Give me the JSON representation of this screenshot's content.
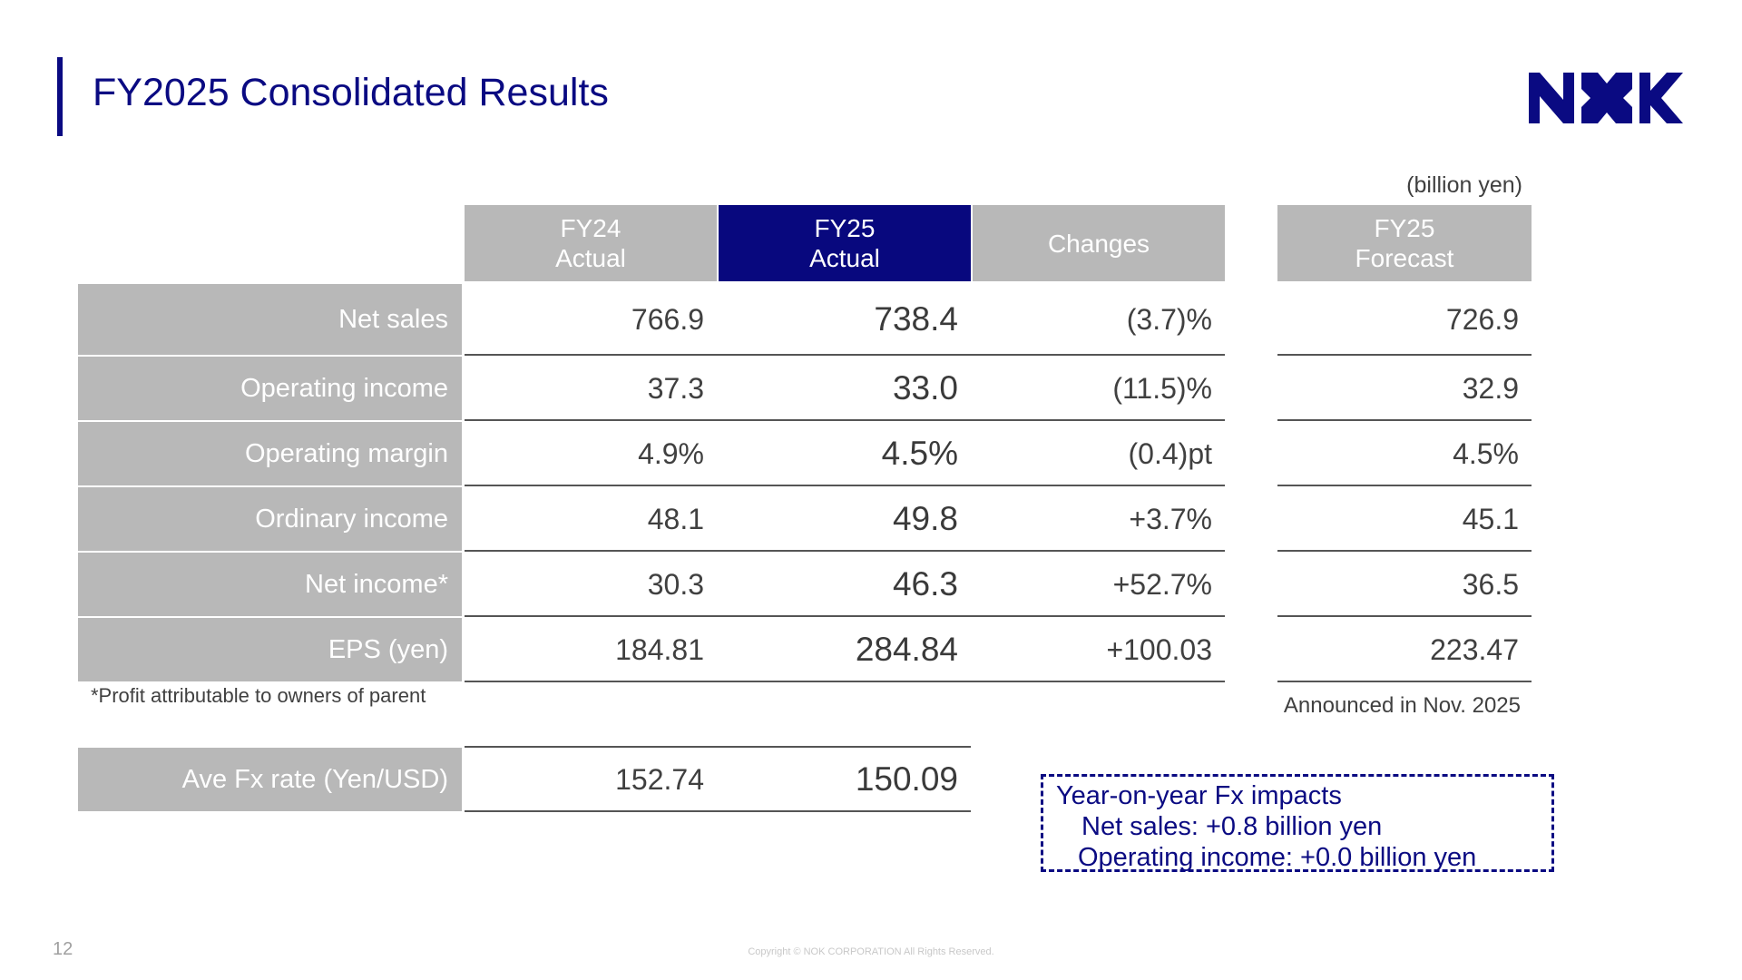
{
  "title": "FY2025 Consolidated Results",
  "unit_note": "(billion yen)",
  "brand_color": "#0a0a82",
  "columns": {
    "fy24": [
      "FY24",
      "Actual"
    ],
    "fy25": [
      "FY25",
      "Actual"
    ],
    "changes": "Changes",
    "forecast": [
      "FY25",
      "Forecast"
    ]
  },
  "rows": [
    {
      "label": "Net sales",
      "fy24": "766.9",
      "fy25": "738.4",
      "change": "(3.7)%",
      "forecast": "726.9"
    },
    {
      "label": "Operating income",
      "fy24": "37.3",
      "fy25": "33.0",
      "change": "(11.5)%",
      "forecast": "32.9"
    },
    {
      "label": "Operating margin",
      "fy24": "4.9%",
      "fy25": "4.5%",
      "change": "(0.4)pt",
      "forecast": "4.5%"
    },
    {
      "label": "Ordinary income",
      "fy24": "48.1",
      "fy25": "49.8",
      "change": "+3.7%",
      "forecast": "45.1"
    },
    {
      "label": "Net income*",
      "fy24": "30.3",
      "fy25": "46.3",
      "change": "+52.7%",
      "forecast": "36.5"
    },
    {
      "label": "EPS (yen)",
      "fy24": "184.81",
      "fy25": "284.84",
      "change": "+100.03",
      "forecast": "223.47"
    }
  ],
  "footnote": "*Profit attributable to owners of parent",
  "forecast_note": "Announced in Nov. 2025",
  "fx_row": {
    "label": "Ave Fx rate (Yen/USD)",
    "fy24": "152.74",
    "fy25": "150.09"
  },
  "fx_box": {
    "title": "Year-on-year Fx impacts",
    "line1": "Net sales: +0.8 billion yen",
    "line2": "Operating income: +0.0 billion yen"
  },
  "page_number": "12",
  "copyright": "Copyright © NOK CORPORATION All Rights Reserved.",
  "logo_text": "NOK"
}
